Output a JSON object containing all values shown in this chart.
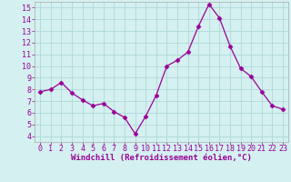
{
  "x": [
    0,
    1,
    2,
    3,
    4,
    5,
    6,
    7,
    8,
    9,
    10,
    11,
    12,
    13,
    14,
    15,
    16,
    17,
    18,
    19,
    20,
    21,
    22,
    23
  ],
  "y": [
    7.8,
    8.0,
    8.6,
    7.7,
    7.1,
    6.6,
    6.8,
    6.1,
    5.6,
    4.2,
    5.7,
    7.5,
    10.0,
    10.5,
    11.2,
    13.4,
    15.3,
    14.1,
    11.7,
    9.8,
    9.1,
    7.8,
    6.6,
    6.3
  ],
  "line_color": "#990099",
  "marker": "D",
  "marker_size": 2.5,
  "background_color": "#d4f0f0",
  "grid_color": "#b0d8d8",
  "xlabel": "Windchill (Refroidissement éolien,°C)",
  "ylabel": "",
  "title": "",
  "xlim": [
    -0.5,
    23.5
  ],
  "ylim": [
    3.5,
    15.5
  ],
  "yticks": [
    4,
    5,
    6,
    7,
    8,
    9,
    10,
    11,
    12,
    13,
    14,
    15
  ],
  "xticks": [
    0,
    1,
    2,
    3,
    4,
    5,
    6,
    7,
    8,
    9,
    10,
    11,
    12,
    13,
    14,
    15,
    16,
    17,
    18,
    19,
    20,
    21,
    22,
    23
  ],
  "tick_color": "#990099",
  "label_color": "#990099",
  "label_fontsize": 6.5,
  "tick_fontsize": 6.0,
  "spine_color": "#aaaaaa"
}
